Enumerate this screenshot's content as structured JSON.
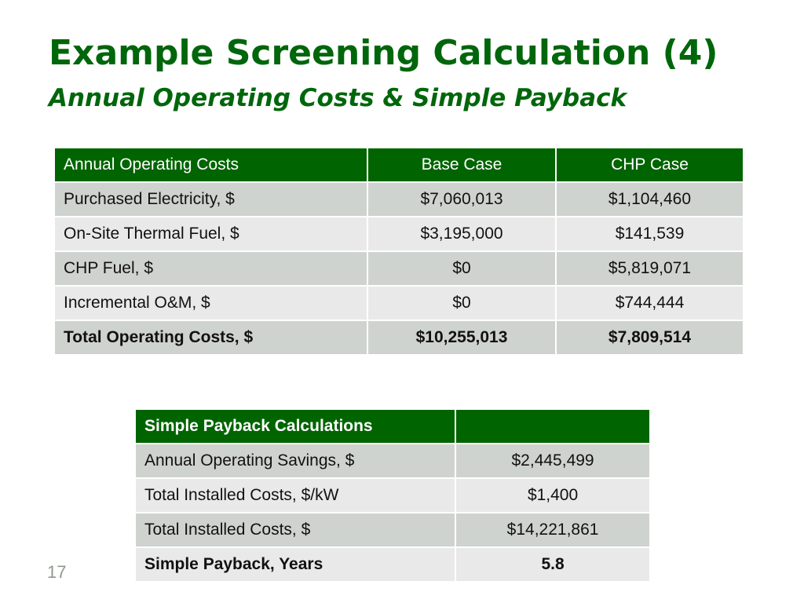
{
  "slide": {
    "title": "Example Screening Calculation (4)",
    "subtitle": "Annual Operating Costs & Simple Payback",
    "page_number": "17"
  },
  "colors": {
    "accent": "#00660b",
    "header_bg": "#006400",
    "row_dark": "#cfd3cf",
    "row_light": "#e8e9e8"
  },
  "costs_table": {
    "headers": [
      "Annual Operating Costs",
      "Base Case",
      "CHP Case"
    ],
    "rows": [
      [
        "Purchased Electricity, $",
        "$7,060,013",
        "$1,104,460"
      ],
      [
        "On-Site Thermal Fuel, $",
        "$3,195,000",
        "$141,539"
      ],
      [
        "CHP Fuel, $",
        "$0",
        "$5,819,071"
      ],
      [
        "Incremental O&M, $",
        "$0",
        "$744,444"
      ],
      [
        "Total Operating Costs, $",
        "$10,255,013",
        "$7,809,514"
      ]
    ]
  },
  "payback_table": {
    "headers": [
      "Simple Payback Calculations",
      ""
    ],
    "rows": [
      [
        "Annual Operating Savings, $",
        "$2,445,499"
      ],
      [
        "Total Installed Costs, $/kW",
        "$1,400"
      ],
      [
        "Total Installed Costs, $",
        "$14,221,861"
      ],
      [
        "Simple Payback, Years",
        "5.8"
      ]
    ]
  }
}
